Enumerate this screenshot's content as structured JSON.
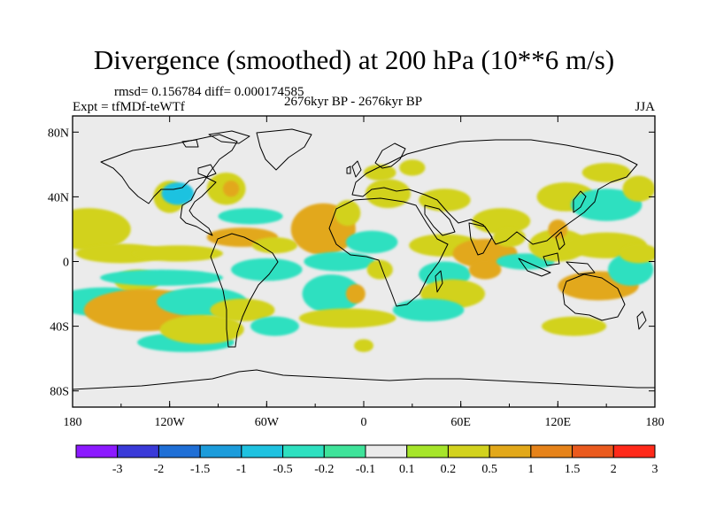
{
  "header": {
    "title": "Divergence (smoothed) at 200 hPa (10**6 m/s)",
    "stats": "rmsd= 0.156784  diff= 0.000174585",
    "period": "2676kyr BP - 2676kyr BP",
    "experiment": "Expt = tfMDf-teWTf",
    "season": "JJA"
  },
  "chart_data": {
    "type": "heatmap",
    "title": "Divergence (smoothed) at 200 hPa (10**6 m/s)",
    "projection": "cylindrical equidistant world map",
    "xlim": [
      -180,
      180
    ],
    "ylim": [
      -90,
      90
    ],
    "x_ticks": [
      {
        "value": -180,
        "label": "180"
      },
      {
        "value": -120,
        "label": "120W"
      },
      {
        "value": -60,
        "label": "60W"
      },
      {
        "value": 0,
        "label": "0"
      },
      {
        "value": 60,
        "label": "60E"
      },
      {
        "value": 120,
        "label": "120E"
      },
      {
        "value": 180,
        "label": "180"
      }
    ],
    "y_ticks": [
      {
        "value": 80,
        "label": "80N"
      },
      {
        "value": 40,
        "label": "40N"
      },
      {
        "value": 0,
        "label": "0"
      },
      {
        "value": -40,
        "label": "40S"
      },
      {
        "value": -80,
        "label": "80S"
      }
    ],
    "colorbar": {
      "labels": [
        "-3",
        "-2",
        "-1.5",
        "-1",
        "-0.5",
        "-0.2",
        "-0.1",
        "0.1",
        "0.2",
        "0.5",
        "1",
        "1.5",
        "2",
        "3"
      ],
      "colors": [
        "#8c1aff",
        "#3a3ad8",
        "#1f6fd6",
        "#1c9cdb",
        "#1fc2e0",
        "#2ee0c0",
        "#3fe39a",
        "#ebebeb",
        "#a6e52a",
        "#d2d21e",
        "#e2a81a",
        "#e6831a",
        "#ea5a1e",
        "#ff2a1a"
      ]
    },
    "background": "#ebebeb",
    "fields": [
      {
        "lon": -170,
        "lat": 20,
        "rx": 26,
        "ry": 13,
        "value": 0.25
      },
      {
        "lon": -150,
        "lat": 5,
        "rx": 28,
        "ry": 6,
        "value": 0.35
      },
      {
        "lon": -160,
        "lat": -25,
        "rx": 32,
        "ry": 9,
        "value": -0.5
      },
      {
        "lon": -140,
        "lat": -12,
        "rx": 14,
        "ry": 7,
        "value": 0.3
      },
      {
        "lon": -135,
        "lat": -30,
        "rx": 38,
        "ry": 13,
        "value": 0.55
      },
      {
        "lon": -125,
        "lat": -10,
        "rx": 38,
        "ry": 5,
        "value": -0.5
      },
      {
        "lon": -115,
        "lat": 5,
        "rx": 28,
        "ry": 5,
        "value": 0.25
      },
      {
        "lon": -110,
        "lat": -50,
        "rx": 30,
        "ry": 6,
        "value": -0.3
      },
      {
        "lon": -100,
        "lat": -25,
        "rx": 28,
        "ry": 9,
        "value": -0.5
      },
      {
        "lon": -100,
        "lat": -42,
        "rx": 26,
        "ry": 9,
        "value": 0.3
      },
      {
        "lon": -120,
        "lat": 40,
        "rx": 10,
        "ry": 10,
        "value": 0.3
      },
      {
        "lon": -115,
        "lat": 42,
        "rx": 10,
        "ry": 7,
        "value": -0.6
      },
      {
        "lon": -85,
        "lat": 45,
        "rx": 12,
        "ry": 10,
        "value": 0.25
      },
      {
        "lon": -82,
        "lat": 45,
        "rx": 5,
        "ry": 5,
        "value": 0.6
      },
      {
        "lon": -75,
        "lat": 15,
        "rx": 22,
        "ry": 6,
        "value": 0.6
      },
      {
        "lon": -70,
        "lat": 28,
        "rx": 20,
        "ry": 5,
        "value": -0.3
      },
      {
        "lon": -55,
        "lat": 10,
        "rx": 14,
        "ry": 5,
        "value": 0.3
      },
      {
        "lon": -60,
        "lat": -5,
        "rx": 22,
        "ry": 7,
        "value": -0.4
      },
      {
        "lon": -75,
        "lat": -30,
        "rx": 20,
        "ry": 7,
        "value": 0.3
      },
      {
        "lon": -55,
        "lat": -40,
        "rx": 15,
        "ry": 6,
        "value": -0.3
      },
      {
        "lon": -25,
        "lat": 20,
        "rx": 20,
        "ry": 16,
        "value": 0.7
      },
      {
        "lon": -10,
        "lat": 30,
        "rx": 8,
        "ry": 8,
        "value": 0.35
      },
      {
        "lon": -15,
        "lat": 0,
        "rx": 22,
        "ry": 6,
        "value": -0.5
      },
      {
        "lon": 5,
        "lat": 12,
        "rx": 16,
        "ry": 7,
        "value": -0.35
      },
      {
        "lon": -20,
        "lat": -20,
        "rx": 18,
        "ry": 12,
        "value": -0.4
      },
      {
        "lon": -10,
        "lat": -35,
        "rx": 30,
        "ry": 6,
        "value": 0.3
      },
      {
        "lon": -5,
        "lat": -20,
        "rx": 6,
        "ry": 6,
        "value": 0.8
      },
      {
        "lon": 0,
        "lat": -52,
        "rx": 6,
        "ry": 4,
        "value": 0.3
      },
      {
        "lon": 15,
        "lat": 42,
        "rx": 14,
        "ry": 9,
        "value": 0.4
      },
      {
        "lon": 10,
        "lat": 55,
        "rx": 10,
        "ry": 5,
        "value": 0.2
      },
      {
        "lon": 30,
        "lat": 58,
        "rx": 8,
        "ry": 5,
        "value": 0.25
      },
      {
        "lon": 50,
        "lat": 38,
        "rx": 16,
        "ry": 7,
        "value": 0.3
      },
      {
        "lon": 50,
        "lat": 10,
        "rx": 22,
        "ry": 7,
        "value": 0.25
      },
      {
        "lon": 50,
        "lat": -8,
        "rx": 16,
        "ry": 8,
        "value": -0.4
      },
      {
        "lon": 55,
        "lat": -20,
        "rx": 20,
        "ry": 9,
        "value": 0.35
      },
      {
        "lon": 40,
        "lat": -30,
        "rx": 22,
        "ry": 7,
        "value": -0.3
      },
      {
        "lon": 75,
        "lat": 5,
        "rx": 20,
        "ry": 9,
        "value": 0.55
      },
      {
        "lon": 75,
        "lat": -5,
        "rx": 10,
        "ry": 6,
        "value": 0.8
      },
      {
        "lon": 85,
        "lat": 25,
        "rx": 18,
        "ry": 8,
        "value": 0.25
      },
      {
        "lon": 90,
        "lat": 15,
        "rx": 10,
        "ry": 6,
        "value": 0.3
      },
      {
        "lon": 100,
        "lat": 0,
        "rx": 18,
        "ry": 5,
        "value": -0.4
      },
      {
        "lon": 120,
        "lat": 10,
        "rx": 18,
        "ry": 10,
        "value": 0.3
      },
      {
        "lon": 120,
        "lat": 20,
        "rx": 6,
        "ry": 6,
        "value": 0.8
      },
      {
        "lon": 125,
        "lat": 40,
        "rx": 18,
        "ry": 9,
        "value": 0.3
      },
      {
        "lon": 150,
        "lat": 35,
        "rx": 22,
        "ry": 10,
        "value": -0.35
      },
      {
        "lon": 150,
        "lat": 55,
        "rx": 15,
        "ry": 6,
        "value": 0.25
      },
      {
        "lon": 150,
        "lat": 10,
        "rx": 25,
        "ry": 8,
        "value": 0.3
      },
      {
        "lon": 145,
        "lat": -15,
        "rx": 25,
        "ry": 9,
        "value": 0.5
      },
      {
        "lon": 130,
        "lat": -40,
        "rx": 20,
        "ry": 6,
        "value": 0.25
      },
      {
        "lon": 165,
        "lat": -5,
        "rx": 14,
        "ry": 10,
        "value": -0.4
      },
      {
        "lon": 170,
        "lat": 5,
        "rx": 12,
        "ry": 6,
        "value": 0.3
      },
      {
        "lon": 170,
        "lat": 45,
        "rx": 10,
        "ry": 8,
        "value": 0.25
      },
      {
        "lon": 10,
        "lat": -5,
        "rx": 8,
        "ry": 6,
        "value": 0.35
      }
    ]
  }
}
